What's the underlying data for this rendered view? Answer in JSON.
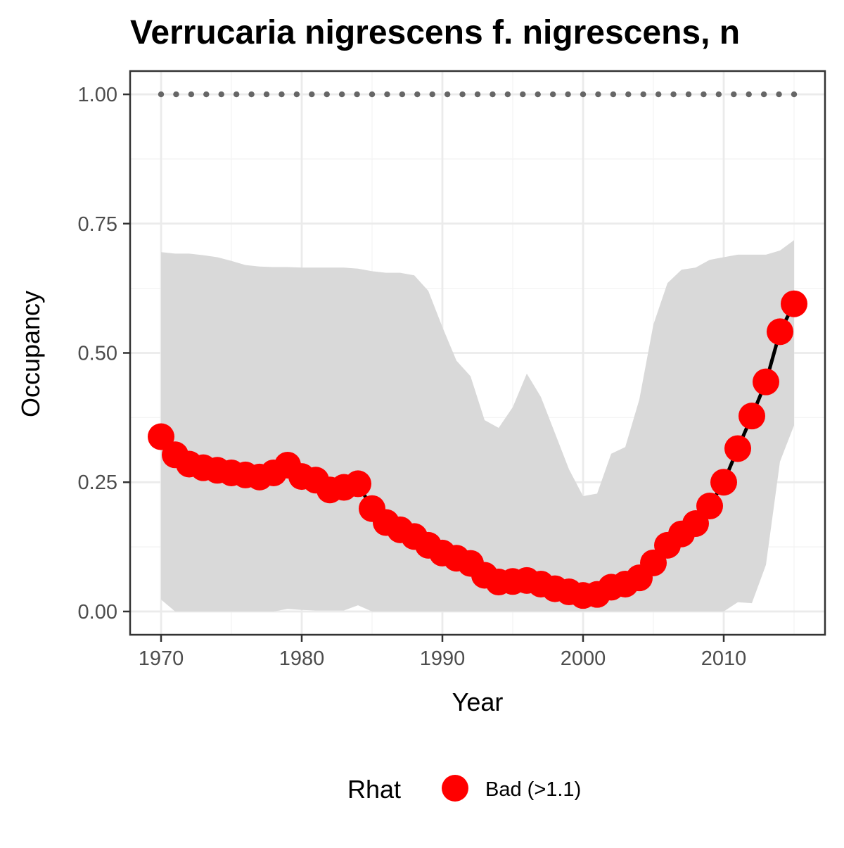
{
  "chart_data": {
    "type": "line",
    "title": "Verrucaria nigrescens f. nigrescens, n",
    "xlabel": "Year",
    "ylabel": "Occupancy",
    "xlim": [
      1967.8,
      1017.2
    ],
    "ylim": [
      -0.045,
      1.045
    ],
    "x_ticks": [
      1970,
      1980,
      1990,
      2000,
      2010
    ],
    "x_tick_labels": [
      "1970",
      "1980",
      "1990",
      "2000",
      "2010"
    ],
    "y_ticks": [
      0,
      0.25,
      0.5,
      0.75,
      1
    ],
    "y_tick_labels": [
      "0.00",
      "0.25",
      "0.50",
      "0.75",
      "1.00"
    ],
    "grid": true,
    "legend": {
      "title": "Rhat",
      "position": "bottom",
      "entries": [
        {
          "label": "Bad (>1.1)",
          "color": "#ff0000"
        }
      ]
    },
    "colors": {
      "points": "#ff0000",
      "line": "#000000",
      "ribbon": "#d9d9d9",
      "reference_dots": "#666666",
      "grid_major": "#ebebeb",
      "grid_minor": "#f4f4f4",
      "panel_border": "#333333"
    },
    "x": [
      1970,
      1971,
      1972,
      1973,
      1974,
      1975,
      1976,
      1977,
      1978,
      1979,
      1980,
      1981,
      1982,
      1983,
      1984,
      1985,
      1986,
      1987,
      1988,
      1989,
      1990,
      1991,
      1992,
      1993,
      1994,
      1995,
      1996,
      1997,
      1998,
      1999,
      2000,
      2001,
      2002,
      2003,
      2004,
      2005,
      2006,
      2007,
      2008,
      2009,
      2010,
      2011,
      2012,
      2013,
      2014,
      2015
    ],
    "series": [
      {
        "name": "Occupancy",
        "values": [
          0.338,
          0.303,
          0.285,
          0.278,
          0.273,
          0.268,
          0.264,
          0.26,
          0.268,
          0.283,
          0.261,
          0.254,
          0.235,
          0.24,
          0.247,
          0.199,
          0.172,
          0.158,
          0.145,
          0.128,
          0.113,
          0.103,
          0.093,
          0.07,
          0.057,
          0.058,
          0.06,
          0.053,
          0.044,
          0.038,
          0.031,
          0.033,
          0.047,
          0.053,
          0.065,
          0.094,
          0.128,
          0.15,
          0.17,
          0.204,
          0.25,
          0.315,
          0.378,
          0.444,
          0.541,
          0.595
        ],
        "lower": [
          0.023,
          0.0,
          0.0,
          0.0,
          0.0,
          0.0,
          0.0,
          0.0,
          0.0,
          0.005,
          0.003,
          0.002,
          0.002,
          0.002,
          0.012,
          0.0,
          0.0,
          0.0,
          0.0,
          0.0,
          0.0,
          0.0,
          0.0,
          0.0,
          0.0,
          0.0,
          0.0,
          0.0,
          0.0,
          0.0,
          0.0,
          0.0,
          0.0,
          0.0,
          0.0,
          0.0,
          0.0,
          0.0,
          0.0,
          0.0,
          0.0,
          0.018,
          0.016,
          0.09,
          0.29,
          0.36
        ],
        "upper": [
          0.695,
          0.692,
          0.692,
          0.689,
          0.685,
          0.678,
          0.67,
          0.667,
          0.666,
          0.666,
          0.665,
          0.665,
          0.665,
          0.665,
          0.663,
          0.658,
          0.655,
          0.655,
          0.65,
          0.62,
          0.55,
          0.485,
          0.455,
          0.37,
          0.355,
          0.395,
          0.46,
          0.415,
          0.345,
          0.275,
          0.223,
          0.228,
          0.305,
          0.318,
          0.41,
          0.555,
          0.635,
          0.661,
          0.665,
          0.68,
          0.685,
          0.69,
          0.69,
          0.69,
          0.698,
          0.718
        ]
      }
    ],
    "reference_line": {
      "y": 1.0,
      "style": "dotted"
    }
  }
}
